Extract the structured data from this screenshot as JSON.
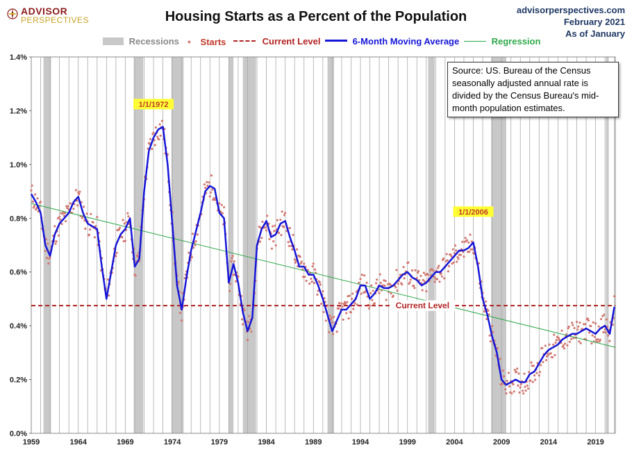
{
  "header": {
    "logo_top": "ADVISOR",
    "logo_bottom": "PERSPECTIVES",
    "title": "Housing Starts as a Percent of the Population",
    "site": "advisorperspectives.com",
    "date": "February 2021",
    "as_of": "As of January"
  },
  "note": "Source: US. Bureau of the Census seasonally adjusted annual rate is divided by the Census Bureau's mid-month population estimates.",
  "colors": {
    "recession": "#c8c8c8",
    "starts": "#d27a74",
    "current_level": "#b22222",
    "moving_average": "#1515d8",
    "regression": "#2ea84a",
    "label_bg": "#ffff33",
    "label_text": "#c0392b"
  },
  "chart_data": {
    "type": "line",
    "title": "Housing Starts as a Percent of the Population",
    "x_tick_labels": [
      "1959",
      "1964",
      "1969",
      "1974",
      "1979",
      "1984",
      "1989",
      "1994",
      "1999",
      "2004",
      "2009",
      "2014",
      "2019"
    ],
    "y_tick_labels": [
      "0.0%",
      "0.2%",
      "0.4%",
      "0.6%",
      "0.8%",
      "1.0%",
      "1.2%",
      "1.4%"
    ],
    "xlim": [
      1959,
      2021.1
    ],
    "ylim": [
      0,
      1.4
    ],
    "grid": "vertical",
    "legend_position": "top",
    "legend": [
      "Recessions",
      "Starts",
      "Current Level",
      "6-Month Moving Average",
      "Regression"
    ],
    "recessions": [
      [
        1960.3,
        1961.1
      ],
      [
        1969.9,
        1970.9
      ],
      [
        1973.9,
        1975.2
      ],
      [
        1980.0,
        1980.5
      ],
      [
        1981.5,
        1982.9
      ],
      [
        1990.5,
        1991.2
      ],
      [
        2001.2,
        2001.9
      ],
      [
        2007.9,
        2009.5
      ],
      [
        2020.1,
        2020.4
      ]
    ],
    "series": [
      {
        "name": "6-Month Moving Average",
        "x": [
          1959.0,
          1959.5,
          1960.0,
          1960.5,
          1961.0,
          1961.5,
          1962.0,
          1962.5,
          1963.0,
          1963.5,
          1964.0,
          1964.5,
          1965.0,
          1965.5,
          1966.0,
          1966.5,
          1967.0,
          1967.5,
          1968.0,
          1968.5,
          1969.0,
          1969.5,
          1970.0,
          1970.5,
          1971.0,
          1971.5,
          1972.0,
          1972.5,
          1973.0,
          1973.5,
          1974.0,
          1974.5,
          1975.0,
          1975.5,
          1976.0,
          1976.5,
          1977.0,
          1977.5,
          1978.0,
          1978.5,
          1979.0,
          1979.5,
          1980.0,
          1980.5,
          1981.0,
          1981.5,
          1982.0,
          1982.5,
          1983.0,
          1983.5,
          1984.0,
          1984.5,
          1985.0,
          1985.5,
          1986.0,
          1986.5,
          1987.0,
          1987.5,
          1988.0,
          1988.5,
          1989.0,
          1989.5,
          1990.0,
          1990.5,
          1991.0,
          1991.5,
          1992.0,
          1992.5,
          1993.0,
          1993.5,
          1994.0,
          1994.5,
          1995.0,
          1995.5,
          1996.0,
          1996.5,
          1997.0,
          1997.5,
          1998.0,
          1998.5,
          1999.0,
          1999.5,
          2000.0,
          2000.5,
          2001.0,
          2001.5,
          2002.0,
          2002.5,
          2003.0,
          2003.5,
          2004.0,
          2004.5,
          2005.0,
          2005.5,
          2006.0,
          2006.5,
          2007.0,
          2007.5,
          2008.0,
          2008.5,
          2009.0,
          2009.5,
          2010.0,
          2010.5,
          2011.0,
          2011.5,
          2012.0,
          2012.5,
          2013.0,
          2013.5,
          2014.0,
          2014.5,
          2015.0,
          2015.5,
          2016.0,
          2016.5,
          2017.0,
          2017.5,
          2018.0,
          2018.5,
          2019.0,
          2019.5,
          2020.0,
          2020.5,
          2021.0
        ],
        "y": [
          0.89,
          0.86,
          0.82,
          0.7,
          0.66,
          0.74,
          0.78,
          0.8,
          0.82,
          0.86,
          0.88,
          0.82,
          0.78,
          0.77,
          0.76,
          0.62,
          0.5,
          0.6,
          0.7,
          0.74,
          0.76,
          0.8,
          0.62,
          0.65,
          0.9,
          1.05,
          1.1,
          1.13,
          1.14,
          1.0,
          0.78,
          0.55,
          0.46,
          0.58,
          0.68,
          0.75,
          0.82,
          0.9,
          0.92,
          0.91,
          0.82,
          0.8,
          0.56,
          0.63,
          0.56,
          0.45,
          0.38,
          0.43,
          0.7,
          0.76,
          0.79,
          0.73,
          0.74,
          0.78,
          0.79,
          0.73,
          0.68,
          0.62,
          0.62,
          0.59,
          0.59,
          0.55,
          0.5,
          0.44,
          0.38,
          0.42,
          0.46,
          0.46,
          0.48,
          0.5,
          0.55,
          0.55,
          0.5,
          0.52,
          0.55,
          0.54,
          0.54,
          0.55,
          0.57,
          0.59,
          0.6,
          0.58,
          0.57,
          0.55,
          0.56,
          0.58,
          0.6,
          0.6,
          0.62,
          0.64,
          0.66,
          0.68,
          0.68,
          0.69,
          0.71,
          0.62,
          0.5,
          0.44,
          0.36,
          0.3,
          0.2,
          0.18,
          0.19,
          0.2,
          0.19,
          0.19,
          0.22,
          0.23,
          0.26,
          0.29,
          0.31,
          0.32,
          0.33,
          0.35,
          0.36,
          0.37,
          0.37,
          0.38,
          0.39,
          0.38,
          0.37,
          0.39,
          0.4,
          0.37,
          0.47
        ]
      },
      {
        "name": "Current Level",
        "y": 0.475
      },
      {
        "name": "Regression",
        "x": [
          1959,
          2021.1
        ],
        "y": [
          0.855,
          0.32
        ]
      }
    ],
    "annotations": [
      {
        "text": "1/1/1972",
        "x": 1972.0,
        "y": 1.2
      },
      {
        "text": "1/1/2006",
        "x": 2006.0,
        "y": 0.8
      },
      {
        "text": "Current Level",
        "x": 2000.6,
        "y": 0.475
      }
    ]
  }
}
